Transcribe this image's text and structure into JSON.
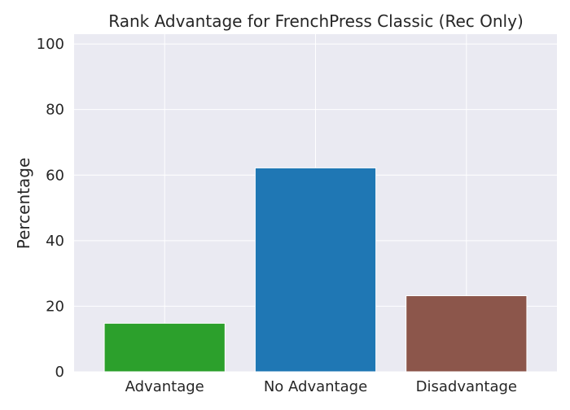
{
  "chart_data": {
    "type": "bar",
    "title": "Rank Advantage for FrenchPress Classic (Rec Only)",
    "xlabel": "",
    "ylabel": "Percentage",
    "categories": [
      "Advantage",
      "No Advantage",
      "Disadvantage"
    ],
    "values": [
      14.8,
      62.2,
      23.2
    ],
    "colors": [
      "#2ca02c",
      "#1f77b4",
      "#8c564b"
    ],
    "ylim": [
      0,
      103
    ],
    "yticks": [
      0,
      20,
      40,
      60,
      80,
      100
    ],
    "grid": true,
    "background": "#eaeaf2"
  }
}
